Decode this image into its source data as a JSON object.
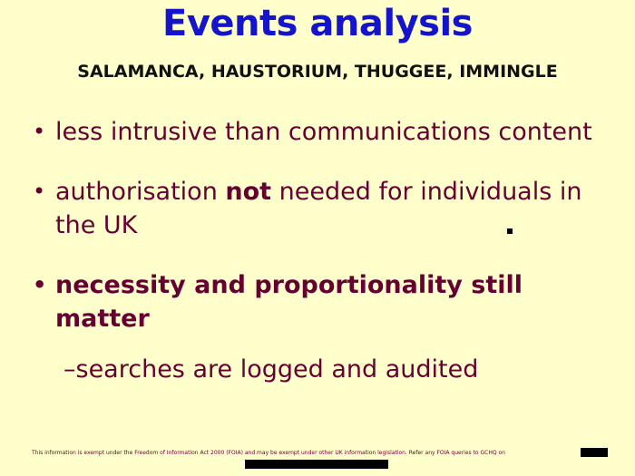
{
  "title": "Events analysis",
  "subtitle": "SALAMANCA, HAUSTORIUM, THUGGEE, IMMINGLE",
  "bullets": [
    {
      "marker": "•",
      "text": "less intrusive than communications content"
    },
    {
      "marker": "•",
      "text_before": "authorisation ",
      "text_bold": "not",
      "text_after": " needed for individuals in the UK"
    },
    {
      "marker": "•",
      "text": "necessity and proportionality still matter"
    }
  ],
  "sub_bullet": {
    "marker": "–",
    "text": "searches are logged and audited"
  },
  "footer": "This information is exempt under the Freedom of Information Act 2000 (FOIA) and may be exempt under other UK information legislation. Refer any FOIA queries to GCHQ on",
  "colors": {
    "background": "#ffffcc",
    "title": "#1414cc",
    "body_text": "#660033",
    "redaction": "#000000"
  }
}
